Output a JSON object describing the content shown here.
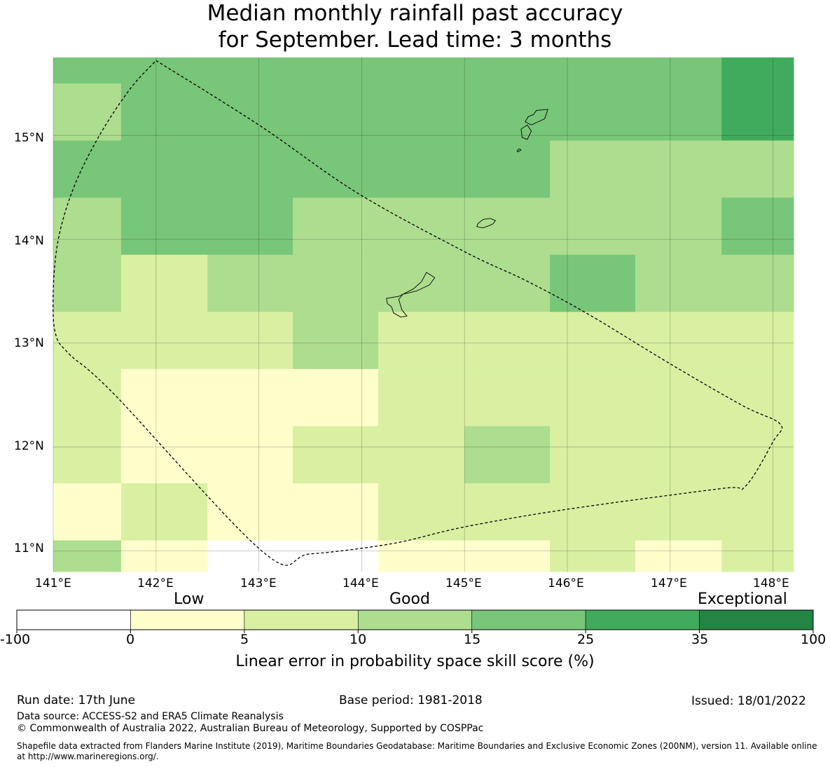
{
  "title_line1": "Median monthly rainfall past accuracy",
  "title_line2": "for September. Lead time: 3 months",
  "map": {
    "lon_labels": [
      "141°E",
      "142°E",
      "143°E",
      "144°E",
      "145°E",
      "146°E",
      "147°E",
      "148°E"
    ],
    "lat_labels": [
      "15°N",
      "14°N",
      "13°N",
      "12°N",
      "11°N"
    ],
    "lon_range": [
      141.0,
      148.2
    ],
    "lat_range": [
      10.8,
      15.75
    ],
    "grid_lines": true,
    "lon_edges": [
      141.0,
      141.66,
      142.5,
      143.33,
      144.16,
      145.0,
      145.83,
      146.66,
      147.5,
      148.2
    ],
    "lat_edges": [
      15.75,
      15.5,
      14.95,
      14.4,
      13.85,
      13.3,
      12.75,
      12.2,
      11.65,
      11.1,
      10.8
    ],
    "cell_classes": [
      [
        4,
        4,
        4,
        4,
        4,
        4,
        4,
        4,
        5
      ],
      [
        3,
        4,
        4,
        4,
        4,
        4,
        4,
        4,
        5
      ],
      [
        4,
        4,
        4,
        4,
        4,
        4,
        3,
        3,
        3
      ],
      [
        3,
        4,
        4,
        3,
        3,
        3,
        3,
        3,
        4
      ],
      [
        3,
        2,
        3,
        3,
        3,
        3,
        4,
        3,
        3
      ],
      [
        2,
        2,
        2,
        3,
        2,
        2,
        2,
        2,
        2
      ],
      [
        2,
        1,
        1,
        1,
        2,
        2,
        2,
        2,
        2
      ],
      [
        2,
        1,
        1,
        2,
        2,
        3,
        2,
        2,
        2
      ],
      [
        1,
        2,
        1,
        1,
        2,
        2,
        2,
        2,
        2
      ],
      [
        3,
        1,
        0,
        0,
        1,
        1,
        2,
        1,
        2
      ]
    ],
    "boundary_lonlat": [
      [
        142.0,
        15.72
      ],
      [
        143.0,
        15.1
      ],
      [
        143.95,
        14.45
      ],
      [
        145.0,
        13.88
      ],
      [
        145.6,
        13.6
      ],
      [
        146.2,
        13.28
      ],
      [
        147.0,
        12.8
      ],
      [
        147.7,
        12.4
      ],
      [
        148.07,
        12.22
      ],
      [
        148.0,
        12.05
      ],
      [
        147.73,
        11.62
      ],
      [
        147.5,
        11.6
      ],
      [
        146.0,
        11.4
      ],
      [
        145.0,
        11.23
      ],
      [
        144.3,
        11.07
      ],
      [
        143.5,
        10.97
      ],
      [
        143.05,
        10.98
      ],
      [
        141.6,
        12.5
      ],
      [
        141.15,
        12.9
      ],
      [
        141.02,
        13.1
      ],
      [
        141.0,
        13.5
      ],
      [
        141.05,
        14.0
      ],
      [
        141.2,
        14.5
      ],
      [
        141.45,
        15.0
      ],
      [
        141.75,
        15.45
      ],
      [
        142.0,
        15.72
      ]
    ],
    "islands_lonlat": [
      [
        [
          144.63,
          13.68
        ],
        [
          144.71,
          13.63
        ],
        [
          144.66,
          13.56
        ],
        [
          144.53,
          13.5
        ],
        [
          144.4,
          13.47
        ],
        [
          144.36,
          13.42
        ],
        [
          144.39,
          13.32
        ],
        [
          144.44,
          13.26
        ],
        [
          144.38,
          13.25
        ],
        [
          144.31,
          13.29
        ],
        [
          144.29,
          13.35
        ],
        [
          144.25,
          13.38
        ],
        [
          144.24,
          13.43
        ],
        [
          144.36,
          13.45
        ],
        [
          144.5,
          13.52
        ],
        [
          144.58,
          13.59
        ],
        [
          144.63,
          13.68
        ]
      ],
      [
        [
          145.18,
          14.11
        ],
        [
          145.24,
          14.13
        ],
        [
          145.28,
          14.15
        ],
        [
          145.3,
          14.18
        ],
        [
          145.25,
          14.2
        ],
        [
          145.18,
          14.19
        ],
        [
          145.13,
          14.15
        ],
        [
          145.12,
          14.12
        ],
        [
          145.18,
          14.11
        ]
      ],
      [
        [
          145.59,
          15.13
        ],
        [
          145.65,
          15.1
        ],
        [
          145.78,
          15.16
        ],
        [
          145.81,
          15.25
        ],
        [
          145.7,
          15.24
        ],
        [
          145.67,
          15.2
        ],
        [
          145.62,
          15.18
        ],
        [
          145.59,
          15.13
        ]
      ],
      [
        [
          145.56,
          14.98
        ],
        [
          145.61,
          14.96
        ],
        [
          145.65,
          15.04
        ],
        [
          145.61,
          15.1
        ],
        [
          145.55,
          15.06
        ],
        [
          145.56,
          14.98
        ]
      ],
      [
        [
          145.52,
          14.84
        ],
        [
          145.55,
          14.86
        ],
        [
          145.53,
          14.87
        ],
        [
          145.51,
          14.85
        ],
        [
          145.52,
          14.84
        ]
      ]
    ]
  },
  "colorbar": {
    "words": [
      "Low",
      "Good",
      "Exceptional"
    ],
    "ticks": [
      "-100",
      "0",
      "5",
      "10",
      "15",
      "25",
      "35",
      "100"
    ],
    "colors": [
      "#ffffff",
      "#ffffcc",
      "#d9f0a3",
      "#addd8e",
      "#78c679",
      "#41ab5d",
      "#238443"
    ],
    "label": "Linear error in probability space skill score (%)"
  },
  "footer": {
    "run_date": "Run date: 17th June",
    "base_period": "Base period: 1981-2018",
    "issued": "Issued: 18/01/2022",
    "data_source": "Data source: ACCESS-S2 and ERA5 Climate Reanalysis",
    "copyright": "© Commonwealth of Australia 2022, Australian Bureau of Meteorology, Supported by COSPPac",
    "shapefile_line1": "Shapefile data extracted from Flanders Marine Institute (2019), Maritime Boundaries Geodatabase: Maritime Boundaries and Exclusive Economic Zones (200NM), version 11. Available online",
    "shapefile_line2": "at http://www.marineregions.org/."
  }
}
